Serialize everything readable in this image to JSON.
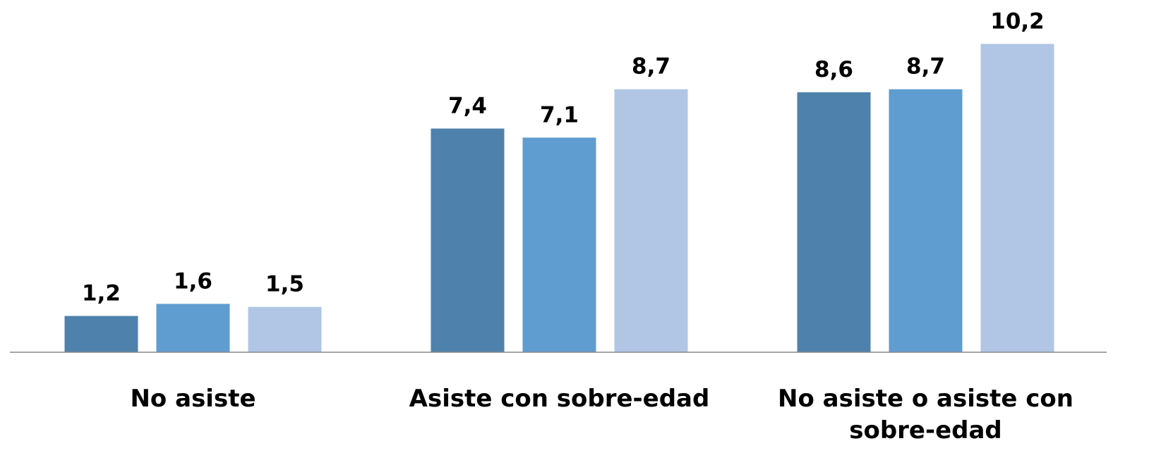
{
  "chart_data": {
    "type": "bar",
    "categories": [
      "No asiste",
      "Asiste con sobre-edad",
      "No asiste o asiste con sobre-edad"
    ],
    "series": [
      {
        "color": "#4f81ad",
        "values": [
          1.2,
          7.4,
          8.6
        ],
        "value_labels": [
          "1,2",
          "7,4",
          "8,6"
        ]
      },
      {
        "color": "#5f9cd0",
        "values": [
          1.6,
          7.1,
          8.7
        ],
        "value_labels": [
          "1,6",
          "7,1",
          "8,7"
        ]
      },
      {
        "color": "#b0c6e4",
        "values": [
          1.5,
          8.7,
          10.2
        ],
        "value_labels": [
          "1,5",
          "8,7",
          "10,2"
        ]
      }
    ],
    "ylim": [
      0,
      11
    ]
  }
}
